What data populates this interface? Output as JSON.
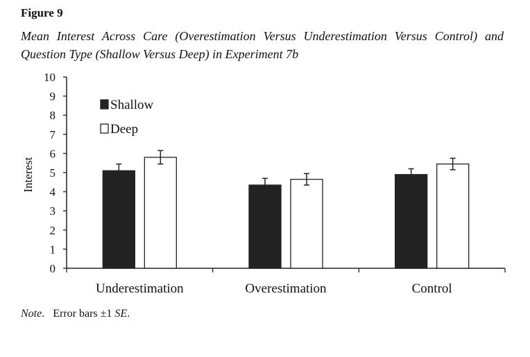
{
  "figure": {
    "label": "Figure 9",
    "title": "Mean Interest Across Care (Overestimation Versus Underestimation Versus Control) and Question Type (Shallow Versus Deep) in Experiment 7b"
  },
  "note": {
    "label": "Note",
    "text_before": "Error bars ±1 ",
    "se": "SE",
    "text_after": "."
  },
  "chart_data": {
    "type": "bar",
    "title": "",
    "xlabel": "",
    "ylabel": "Interest",
    "ylim": [
      0,
      10
    ],
    "yticks": [
      "0",
      "1",
      "2",
      "3",
      "4",
      "5",
      "6",
      "7",
      "8",
      "9",
      "10"
    ],
    "categories": [
      "Underestimation",
      "Overestimation",
      "Control"
    ],
    "series": [
      {
        "name": "Shallow",
        "values": [
          5.1,
          4.35,
          4.9
        ],
        "error": [
          0.35,
          0.35,
          0.3
        ],
        "color": "#222222"
      },
      {
        "name": "Deep",
        "values": [
          5.8,
          4.65,
          5.45
        ],
        "error": [
          0.35,
          0.3,
          0.3
        ],
        "color": "#ffffff"
      }
    ],
    "legend": "top-left",
    "grid": false
  }
}
